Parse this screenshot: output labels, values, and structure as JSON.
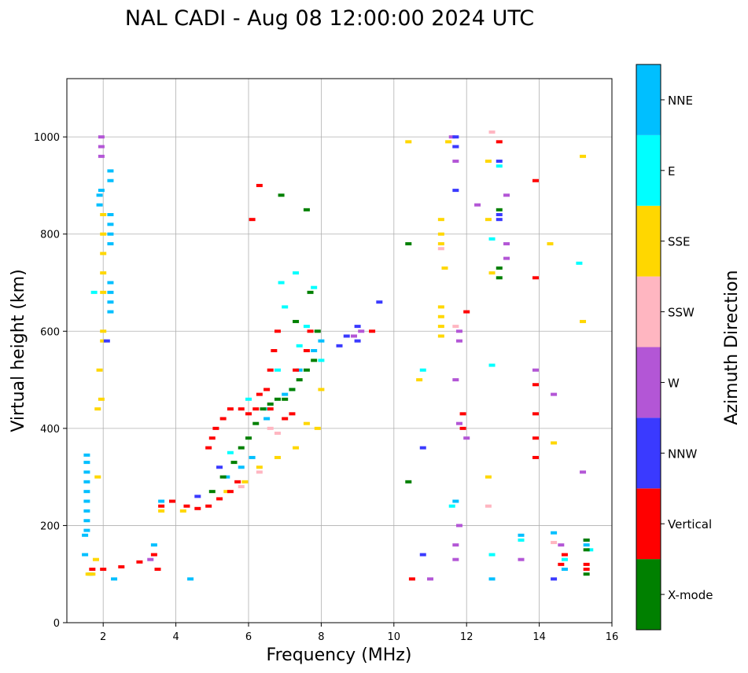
{
  "chart_data": {
    "type": "scatter",
    "title": "NAL CADI - Aug 08 12:00:00 2024 UTC",
    "xlabel": "Frequency (MHz)",
    "ylabel": "Virtual height (km)",
    "xlim": [
      1,
      16
    ],
    "ylim": [
      0,
      1120
    ],
    "xticks": [
      2,
      4,
      6,
      8,
      10,
      12,
      14,
      16
    ],
    "yticks": [
      0,
      200,
      400,
      600,
      800,
      1000
    ],
    "grid": true,
    "colorbar": {
      "label": "Azimuth Direction",
      "categories": [
        {
          "name": "X-mode",
          "color": "#008000"
        },
        {
          "name": "Vertical",
          "color": "#ff0000"
        },
        {
          "name": "NNW",
          "color": "#3a3aff"
        },
        {
          "name": "W",
          "color": "#b356d6"
        },
        {
          "name": "SSW",
          "color": "#ffb6c1"
        },
        {
          "name": "SSE",
          "color": "#ffd700"
        },
        {
          "name": "E",
          "color": "#00ffff"
        },
        {
          "name": "NNE",
          "color": "#00bfff"
        }
      ]
    },
    "series": [
      {
        "name": "NNE",
        "points": [
          [
            1.55,
            190
          ],
          [
            1.55,
            210
          ],
          [
            1.55,
            230
          ],
          [
            1.55,
            250
          ],
          [
            1.55,
            270
          ],
          [
            1.55,
            290
          ],
          [
            1.55,
            310
          ],
          [
            1.55,
            330
          ],
          [
            1.55,
            345
          ],
          [
            1.5,
            140
          ],
          [
            1.5,
            180
          ],
          [
            1.65,
            100
          ],
          [
            1.9,
            860
          ],
          [
            1.9,
            880
          ],
          [
            1.95,
            890
          ],
          [
            2.2,
            640
          ],
          [
            2.2,
            660
          ],
          [
            2.2,
            680
          ],
          [
            2.2,
            700
          ],
          [
            2.2,
            780
          ],
          [
            2.2,
            800
          ],
          [
            2.2,
            820
          ],
          [
            2.2,
            840
          ],
          [
            2.2,
            910
          ],
          [
            2.2,
            930
          ],
          [
            2.3,
            90
          ],
          [
            3.4,
            160
          ],
          [
            3.6,
            250
          ],
          [
            4.4,
            90
          ],
          [
            5.4,
            300
          ],
          [
            5.8,
            320
          ],
          [
            6.1,
            340
          ],
          [
            6.5,
            420
          ],
          [
            7.0,
            470
          ],
          [
            7.4,
            520
          ],
          [
            7.8,
            560
          ],
          [
            8.0,
            580
          ],
          [
            11.7,
            250
          ],
          [
            12.7,
            90
          ],
          [
            13.5,
            180
          ],
          [
            14.4,
            185
          ],
          [
            14.7,
            110
          ],
          [
            15.3,
            160
          ]
        ]
      },
      {
        "name": "E",
        "points": [
          [
            1.75,
            680
          ],
          [
            5.5,
            350
          ],
          [
            6.0,
            460
          ],
          [
            6.5,
            440
          ],
          [
            6.8,
            520
          ],
          [
            6.9,
            700
          ],
          [
            7.0,
            650
          ],
          [
            7.2,
            480
          ],
          [
            7.3,
            720
          ],
          [
            7.4,
            570
          ],
          [
            7.6,
            610
          ],
          [
            7.8,
            690
          ],
          [
            8.0,
            540
          ],
          [
            10.8,
            520
          ],
          [
            11.6,
            240
          ],
          [
            12.7,
            140
          ],
          [
            12.7,
            530
          ],
          [
            12.7,
            790
          ],
          [
            12.9,
            940
          ],
          [
            13.5,
            170
          ],
          [
            14.7,
            130
          ],
          [
            15.1,
            740
          ],
          [
            15.4,
            150
          ]
        ]
      },
      {
        "name": "SSE",
        "points": [
          [
            1.6,
            100
          ],
          [
            1.7,
            100
          ],
          [
            1.8,
            130
          ],
          [
            1.85,
            300
          ],
          [
            1.85,
            440
          ],
          [
            1.9,
            520
          ],
          [
            1.95,
            460
          ],
          [
            2.0,
            580
          ],
          [
            2.0,
            600
          ],
          [
            2.0,
            680
          ],
          [
            2.0,
            720
          ],
          [
            2.0,
            760
          ],
          [
            2.0,
            800
          ],
          [
            2.0,
            840
          ],
          [
            3.6,
            230
          ],
          [
            4.2,
            230
          ],
          [
            5.4,
            270
          ],
          [
            5.9,
            290
          ],
          [
            6.3,
            320
          ],
          [
            6.8,
            340
          ],
          [
            7.3,
            360
          ],
          [
            7.6,
            410
          ],
          [
            7.9,
            400
          ],
          [
            8.0,
            480
          ],
          [
            10.4,
            990
          ],
          [
            10.7,
            500
          ],
          [
            11.3,
            590
          ],
          [
            11.3,
            610
          ],
          [
            11.3,
            630
          ],
          [
            11.3,
            650
          ],
          [
            11.3,
            780
          ],
          [
            11.3,
            800
          ],
          [
            11.3,
            830
          ],
          [
            11.4,
            730
          ],
          [
            11.5,
            990
          ],
          [
            12.6,
            300
          ],
          [
            12.6,
            830
          ],
          [
            12.6,
            950
          ],
          [
            12.7,
            720
          ],
          [
            14.3,
            780
          ],
          [
            14.4,
            370
          ],
          [
            15.2,
            620
          ],
          [
            15.2,
            960
          ]
        ]
      },
      {
        "name": "SSW",
        "points": [
          [
            5.8,
            280
          ],
          [
            6.3,
            310
          ],
          [
            6.6,
            400
          ],
          [
            6.8,
            390
          ],
          [
            11.3,
            770
          ],
          [
            11.7,
            610
          ],
          [
            12.6,
            240
          ],
          [
            12.7,
            1010
          ],
          [
            14.4,
            165
          ]
        ]
      },
      {
        "name": "W",
        "points": [
          [
            1.95,
            960
          ],
          [
            1.95,
            980
          ],
          [
            1.95,
            1000
          ],
          [
            3.3,
            130
          ],
          [
            8.9,
            590
          ],
          [
            9.1,
            600
          ],
          [
            11.0,
            90
          ],
          [
            11.6,
            1000
          ],
          [
            11.7,
            980
          ],
          [
            11.7,
            950
          ],
          [
            11.7,
            500
          ],
          [
            11.7,
            130
          ],
          [
            11.7,
            160
          ],
          [
            11.8,
            600
          ],
          [
            11.8,
            580
          ],
          [
            11.8,
            410
          ],
          [
            11.8,
            200
          ],
          [
            12.0,
            380
          ],
          [
            12.3,
            860
          ],
          [
            13.1,
            750
          ],
          [
            13.1,
            780
          ],
          [
            13.1,
            880
          ],
          [
            13.5,
            130
          ],
          [
            13.9,
            520
          ],
          [
            14.4,
            470
          ],
          [
            14.6,
            160
          ],
          [
            15.2,
            310
          ]
        ]
      },
      {
        "name": "NNW",
        "points": [
          [
            2.1,
            580
          ],
          [
            4.6,
            260
          ],
          [
            5.2,
            320
          ],
          [
            8.5,
            570
          ],
          [
            8.7,
            590
          ],
          [
            9.0,
            610
          ],
          [
            9.0,
            580
          ],
          [
            9.6,
            660
          ],
          [
            10.8,
            360
          ],
          [
            10.8,
            140
          ],
          [
            11.7,
            890
          ],
          [
            11.7,
            980
          ],
          [
            11.7,
            1000
          ],
          [
            12.9,
            830
          ],
          [
            12.9,
            840
          ],
          [
            12.9,
            950
          ],
          [
            14.4,
            90
          ],
          [
            15.3,
            170
          ]
        ]
      },
      {
        "name": "Vertical",
        "points": [
          [
            1.7,
            110
          ],
          [
            2.0,
            110
          ],
          [
            2.5,
            115
          ],
          [
            3.0,
            125
          ],
          [
            3.4,
            140
          ],
          [
            3.5,
            110
          ],
          [
            3.6,
            240
          ],
          [
            3.9,
            250
          ],
          [
            4.3,
            240
          ],
          [
            4.6,
            235
          ],
          [
            4.9,
            240
          ],
          [
            5.2,
            255
          ],
          [
            5.5,
            270
          ],
          [
            5.7,
            290
          ],
          [
            4.9,
            360
          ],
          [
            5.0,
            380
          ],
          [
            5.1,
            400
          ],
          [
            5.3,
            420
          ],
          [
            5.5,
            440
          ],
          [
            5.8,
            440
          ],
          [
            6.0,
            430
          ],
          [
            6.2,
            440
          ],
          [
            6.3,
            470
          ],
          [
            6.5,
            480
          ],
          [
            6.6,
            520
          ],
          [
            6.7,
            560
          ],
          [
            6.8,
            600
          ],
          [
            6.1,
            830
          ],
          [
            6.3,
            900
          ],
          [
            6.6,
            440
          ],
          [
            7.0,
            420
          ],
          [
            7.2,
            430
          ],
          [
            7.3,
            520
          ],
          [
            7.6,
            560
          ],
          [
            7.7,
            600
          ],
          [
            9.4,
            600
          ],
          [
            10.5,
            90
          ],
          [
            11.9,
            430
          ],
          [
            11.9,
            400
          ],
          [
            12.0,
            640
          ],
          [
            12.9,
            990
          ],
          [
            13.9,
            910
          ],
          [
            13.9,
            710
          ],
          [
            13.9,
            490
          ],
          [
            13.9,
            430
          ],
          [
            13.9,
            380
          ],
          [
            13.9,
            340
          ],
          [
            14.6,
            120
          ],
          [
            14.7,
            140
          ],
          [
            15.3,
            110
          ],
          [
            15.3,
            120
          ]
        ]
      },
      {
        "name": "X-mode",
        "points": [
          [
            5.0,
            270
          ],
          [
            5.3,
            300
          ],
          [
            5.6,
            330
          ],
          [
            5.8,
            360
          ],
          [
            6.0,
            380
          ],
          [
            6.2,
            410
          ],
          [
            6.4,
            440
          ],
          [
            6.6,
            450
          ],
          [
            6.8,
            460
          ],
          [
            7.0,
            460
          ],
          [
            7.2,
            480
          ],
          [
            7.4,
            500
          ],
          [
            7.6,
            520
          ],
          [
            7.8,
            540
          ],
          [
            7.3,
            620
          ],
          [
            7.7,
            680
          ],
          [
            7.9,
            600
          ],
          [
            6.9,
            880
          ],
          [
            7.6,
            850
          ],
          [
            10.4,
            290
          ],
          [
            10.4,
            780
          ],
          [
            12.9,
            710
          ],
          [
            12.9,
            730
          ],
          [
            12.9,
            850
          ],
          [
            15.3,
            100
          ],
          [
            15.3,
            150
          ],
          [
            15.3,
            170
          ]
        ]
      }
    ]
  }
}
